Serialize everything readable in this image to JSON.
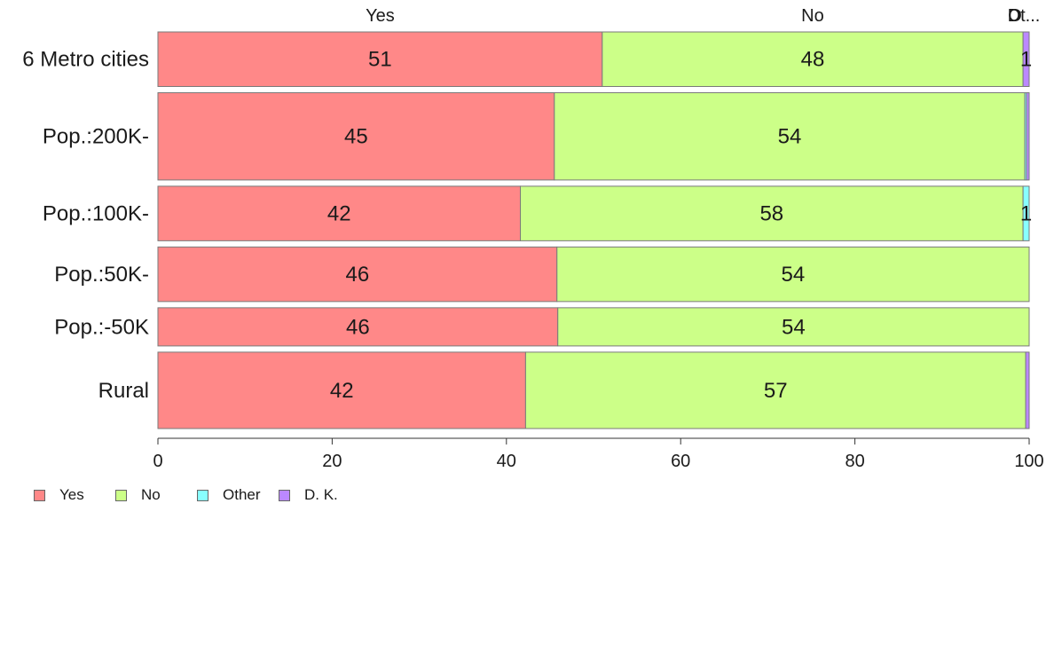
{
  "chart_data": {
    "type": "bar",
    "orientation": "horizontal",
    "stacked": true,
    "categories": [
      "6 Metro cities",
      "Pop.:200K-",
      "Pop.:100K-",
      "Pop.:50K-",
      "Pop.:-50K",
      "Rural"
    ],
    "series": [
      {
        "name": "Yes",
        "color": "#ff8888",
        "values": [
          51,
          45.5,
          41.6,
          45.8,
          45.9,
          42.2
        ],
        "labels": [
          "51",
          "45",
          "42",
          "46",
          "46",
          "42"
        ]
      },
      {
        "name": "No",
        "color": "#ccff88",
        "values": [
          48.3,
          54,
          57.7,
          54.2,
          54.1,
          57.4
        ],
        "labels": [
          "48",
          "54",
          "58",
          "54",
          "54",
          "57"
        ]
      },
      {
        "name": "Other",
        "color": "#88ffff",
        "values": [
          0,
          0.2,
          0.7,
          0,
          0,
          0
        ],
        "labels": [
          "",
          "",
          "1",
          "",
          "",
          ""
        ]
      },
      {
        "name": "D. K.",
        "color": "#bb88ff",
        "values": [
          0.7,
          0.3,
          0,
          0,
          0,
          0.4
        ],
        "labels": [
          "1",
          "",
          "",
          "",
          "",
          ""
        ]
      }
    ],
    "bar_weights": [
      1,
      1.6,
      1,
      1,
      0.7,
      1.4
    ],
    "top_labels": [
      "Yes",
      "No",
      "Other",
      "D. K."
    ],
    "top_label_texts": [
      "Yes",
      "No",
      "O",
      "Dt..."
    ],
    "xlim": [
      0,
      100
    ],
    "xticks": [
      0,
      20,
      40,
      60,
      80,
      100
    ],
    "legend_position": "bottom-left",
    "grid": false
  },
  "legend": [
    {
      "label": "Yes",
      "color": "#ff8888"
    },
    {
      "label": "No",
      "color": "#ccff88"
    },
    {
      "label": "Other",
      "color": "#88ffff"
    },
    {
      "label": "D. K.",
      "color": "#bb88ff"
    }
  ]
}
